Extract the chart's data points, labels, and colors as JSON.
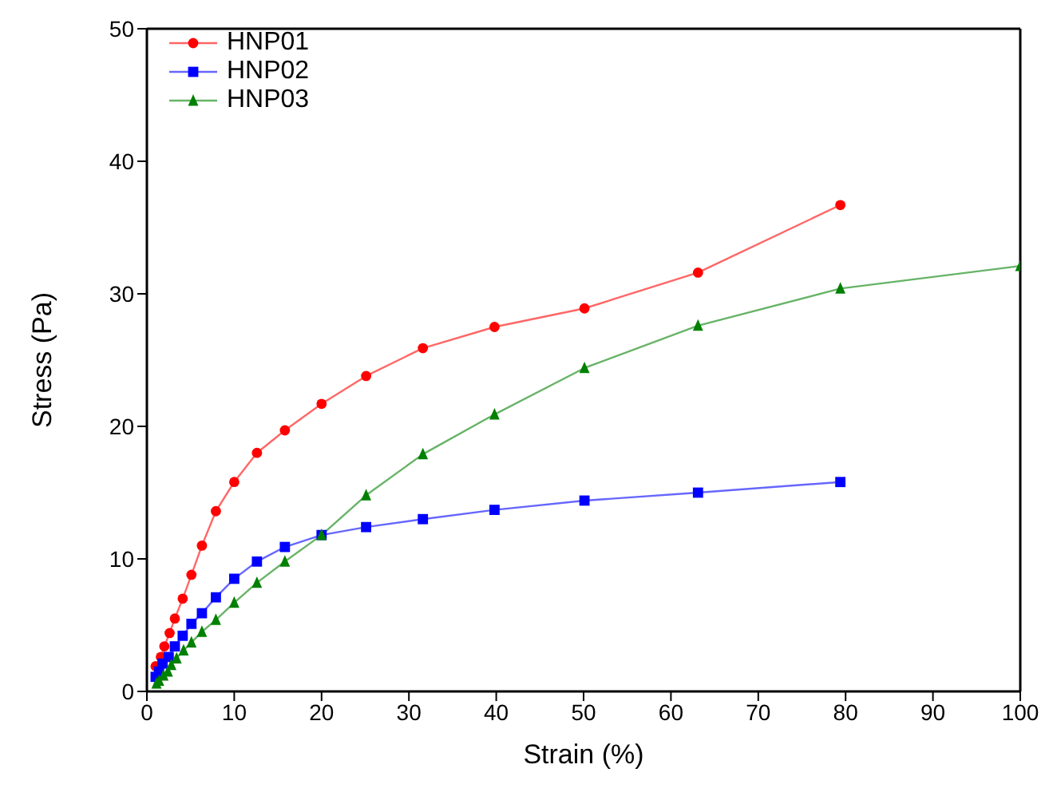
{
  "chart_data": {
    "type": "line",
    "xlabel": "Strain (%)",
    "ylabel": "Stress (Pa)",
    "xlim": [
      0,
      100
    ],
    "xticks": [
      0,
      10,
      20,
      30,
      40,
      50,
      60,
      70,
      80,
      90,
      100
    ],
    "ylim": [
      0,
      50
    ],
    "yticks": [
      0,
      10,
      20,
      30,
      40,
      50
    ],
    "legend": "top left",
    "line_style": "solid",
    "series": [
      {
        "name": "HNP01",
        "color": "#ff0000",
        "marker": "circle",
        "x": [
          1,
          1.6,
          2,
          2.6,
          3.2,
          4.1,
          5.1,
          6.3,
          7.9,
          10,
          12.6,
          15.8,
          20,
          25.1,
          31.6,
          39.8,
          50.1,
          63.1,
          79.4
        ],
        "values": [
          1.9,
          2.6,
          3.4,
          4.4,
          5.5,
          7.0,
          8.8,
          11.0,
          13.6,
          15.8,
          18.0,
          19.7,
          21.7,
          23.8,
          25.9,
          27.5,
          28.9,
          31.6,
          36.7
        ]
      },
      {
        "name": "HNP02",
        "color": "#0000ff",
        "marker": "square",
        "x": [
          1,
          1.4,
          1.8,
          2.5,
          3.2,
          4.1,
          5.1,
          6.3,
          7.9,
          10,
          12.6,
          15.8,
          20,
          25.1,
          31.6,
          39.8,
          50.1,
          63.1,
          79.4
        ],
        "values": [
          1.1,
          1.5,
          2.1,
          2.6,
          3.4,
          4.2,
          5.1,
          5.9,
          7.1,
          8.5,
          9.8,
          10.9,
          11.8,
          12.4,
          13.0,
          13.7,
          14.4,
          15.0,
          15.8
        ]
      },
      {
        "name": "HNP03",
        "color": "#008000",
        "marker": "triangle",
        "x": [
          1.1,
          1.4,
          1.9,
          2.4,
          2.8,
          3.4,
          4.2,
          5.1,
          6.3,
          7.9,
          10,
          12.6,
          15.8,
          20,
          25.1,
          31.6,
          39.8,
          50.1,
          63.1,
          79.4,
          100
        ],
        "values": [
          0.6,
          0.8,
          1.2,
          1.5,
          2.0,
          2.5,
          3.1,
          3.7,
          4.5,
          5.4,
          6.7,
          8.2,
          9.8,
          11.8,
          14.8,
          17.9,
          20.9,
          24.4,
          27.6,
          30.4,
          32.1
        ]
      }
    ]
  }
}
